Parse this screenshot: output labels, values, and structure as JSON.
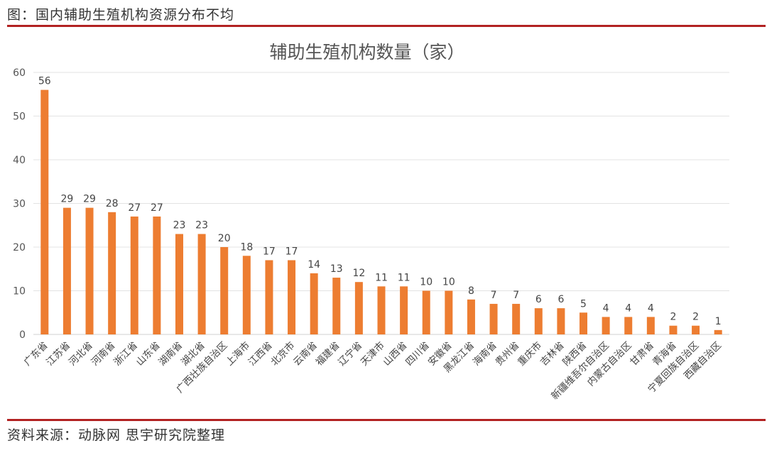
{
  "figure_caption": "图：国内辅助生殖机构资源分布不均",
  "source_note": "资料来源：动脉网 思宇研究院整理",
  "chart_data": {
    "type": "bar",
    "title": "辅助生殖机构数量（家）",
    "xlabel": "",
    "ylabel": "",
    "ylim": [
      0,
      60
    ],
    "yticks": [
      0,
      10,
      20,
      30,
      40,
      50,
      60
    ],
    "grid": true,
    "bar_color": "#ED7D31",
    "categories": [
      "广东省",
      "江苏省",
      "河北省",
      "河南省",
      "浙江省",
      "山东省",
      "湖南省",
      "湖北省",
      "广西壮族自治区",
      "上海市",
      "江西省",
      "北京市",
      "云南省",
      "福建省",
      "辽宁省",
      "天津市",
      "山西省",
      "四川省",
      "安徽省",
      "黑龙江省",
      "海南省",
      "贵州省",
      "重庆市",
      "吉林省",
      "陕西省",
      "新疆维吾尔自治区",
      "内蒙古自治区",
      "甘肃省",
      "青海省",
      "宁夏回族自治区",
      "西藏自治区"
    ],
    "values": [
      56,
      29,
      29,
      28,
      27,
      27,
      23,
      23,
      20,
      18,
      17,
      17,
      14,
      13,
      12,
      11,
      11,
      10,
      10,
      8,
      7,
      7,
      6,
      6,
      5,
      4,
      4,
      4,
      2,
      2,
      1
    ]
  }
}
